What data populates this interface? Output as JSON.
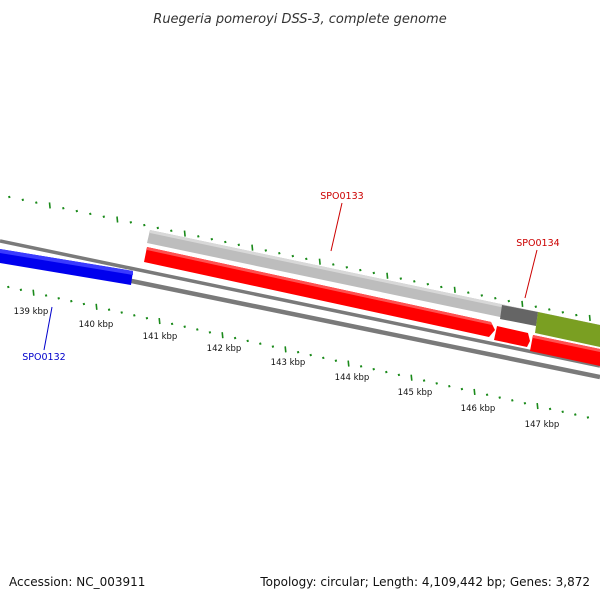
{
  "header": {
    "title": "Ruegeria pomeroyi DSS-3, complete genome"
  },
  "footer": {
    "accession": "Accession: NC_003911",
    "summary": "Topology: circular; Length: 4,109,442 bp; Genes: 3,872"
  },
  "colors": {
    "background": "#ffffff",
    "backbone": "#808080",
    "tick": "#1a8a1a",
    "forward_gene": "#0000ee",
    "reverse_gene": "#ff0000",
    "grey_feature": "#bcbcbc",
    "dark_feature": "#666666",
    "olive_feature": "#7aa020",
    "label_red": "#cc0000",
    "label_blue": "#0000cc"
  },
  "map": {
    "scale_ticks": [
      {
        "label": "139 kbp"
      },
      {
        "label": "140 kbp"
      },
      {
        "label": "141 kbp"
      },
      {
        "label": "142 kbp"
      },
      {
        "label": "143 kbp"
      },
      {
        "label": "144 kbp"
      },
      {
        "label": "145 kbp"
      },
      {
        "label": "146 kbp"
      },
      {
        "label": "147 kbp"
      }
    ],
    "gene_labels": [
      {
        "name": "SPO0132",
        "color": "#0000cc"
      },
      {
        "name": "SPO0133",
        "color": "#cc0000"
      },
      {
        "name": "SPO0134",
        "color": "#cc0000"
      }
    ]
  }
}
